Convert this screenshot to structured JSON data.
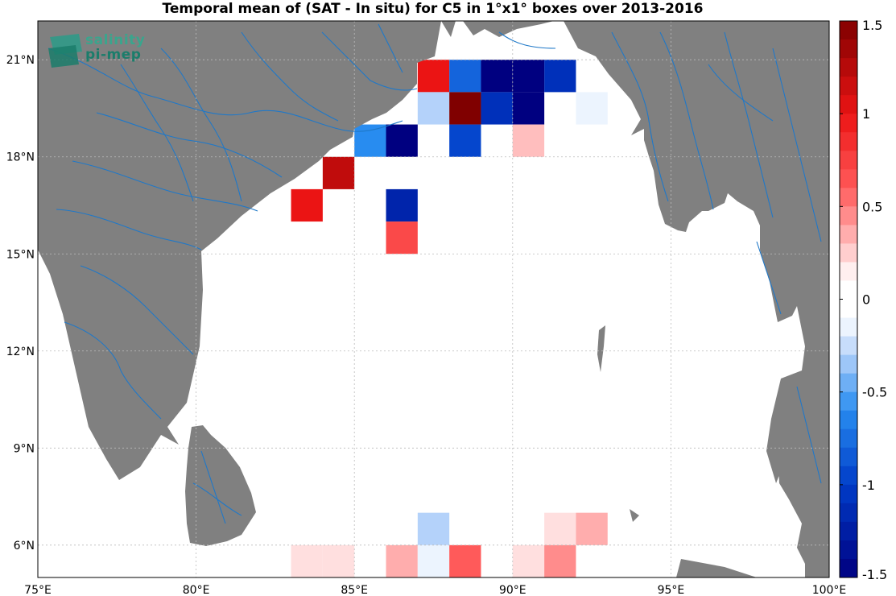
{
  "title": "Temporal mean of (SAT - In situ) for C5 in 1°x1° boxes over 2013-2016",
  "logo": {
    "line1": "salinity",
    "line2": "pi-mep"
  },
  "map": {
    "lon_range": [
      75,
      100
    ],
    "lat_range": [
      5,
      22.2
    ],
    "lon_ticks": [
      75,
      80,
      85,
      90,
      95,
      100
    ],
    "lat_ticks": [
      6,
      9,
      12,
      15,
      18,
      21
    ],
    "lon_labels": [
      "75°E",
      "80°E",
      "85°E",
      "90°E",
      "95°E",
      "100°E"
    ],
    "lat_labels": [
      "6°N",
      "9°N",
      "12°N",
      "15°N",
      "18°N",
      "21°N"
    ],
    "grid": true,
    "land_color": "#808080",
    "river_color": "#1f78c8"
  },
  "colorbar": {
    "min": -1.5,
    "max": 1.5,
    "ticks": [
      1.5,
      1,
      0.5,
      0,
      -0.5,
      -1,
      -1.5
    ],
    "tick_labels": [
      "1.5",
      "1",
      "0.5",
      "0",
      "-0.5",
      "-1",
      "-1.5"
    ]
  },
  "cells": [
    {
      "lon": 87,
      "lat": 20,
      "v": 1.0
    },
    {
      "lon": 88,
      "lat": 20,
      "v": -0.8
    },
    {
      "lon": 89,
      "lat": 20,
      "v": -1.5
    },
    {
      "lon": 90,
      "lat": 20,
      "v": -1.5
    },
    {
      "lon": 91,
      "lat": 20,
      "v": -1.1
    },
    {
      "lon": 87,
      "lat": 19,
      "v": -0.3
    },
    {
      "lon": 88,
      "lat": 19,
      "v": 1.5
    },
    {
      "lon": 89,
      "lat": 19,
      "v": -1.1
    },
    {
      "lon": 90,
      "lat": 19,
      "v": -1.5
    },
    {
      "lon": 92,
      "lat": 19,
      "v": -0.15
    },
    {
      "lon": 85,
      "lat": 18,
      "v": -0.6
    },
    {
      "lon": 86,
      "lat": 18,
      "v": -1.5
    },
    {
      "lon": 88,
      "lat": 18,
      "v": -0.95
    },
    {
      "lon": 90,
      "lat": 18,
      "v": 0.3
    },
    {
      "lon": 84,
      "lat": 17,
      "v": 1.2
    },
    {
      "lon": 83,
      "lat": 16,
      "v": 1.0
    },
    {
      "lon": 86,
      "lat": 16,
      "v": -1.2
    },
    {
      "lon": 86,
      "lat": 15,
      "v": 0.7
    },
    {
      "lon": 87,
      "lat": 6,
      "v": -0.3
    },
    {
      "lon": 91,
      "lat": 6,
      "v": 0.2
    },
    {
      "lon": 92,
      "lat": 6,
      "v": 0.35
    },
    {
      "lon": 83,
      "lat": 5,
      "v": 0.2
    },
    {
      "lon": 84,
      "lat": 5,
      "v": 0.2
    },
    {
      "lon": 86,
      "lat": 5,
      "v": 0.35
    },
    {
      "lon": 87,
      "lat": 5,
      "v": -0.15
    },
    {
      "lon": 88,
      "lat": 5,
      "v": 0.6
    },
    {
      "lon": 90,
      "lat": 5,
      "v": 0.2
    },
    {
      "lon": 91,
      "lat": 5,
      "v": 0.45
    }
  ]
}
